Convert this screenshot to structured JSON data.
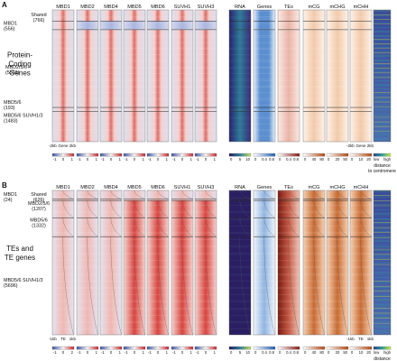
{
  "colors": {
    "enrich_neg": "#3a53a4",
    "enrich_mid": "#f7f4f2",
    "enrich_pos": "#c8242b",
    "rna_low": "#241a5c",
    "rna_mid": "#2f7f9a",
    "rna_high": "#c8e05a",
    "genes_pos": "#1f5fb4",
    "tes_pos": "#8e1b14",
    "meth_pos": "#b34a12",
    "dist_low": "#2c3e8f",
    "dist_high": "#d6e93a"
  },
  "columns": [
    "MBD1",
    "MBD2",
    "MBD4",
    "MBD5",
    "MBD6",
    "SUVH1",
    "SUVH3",
    "RNA",
    "Genes",
    "TEs",
    "mCG",
    "mCHG",
    "mCHH"
  ],
  "panel_a": {
    "letter": "A",
    "title": "Protein-\nCoding\nGenes",
    "title_lines": [
      "Protein-",
      "Coding",
      "Genes"
    ],
    "groups": [
      {
        "name": "Shared",
        "count": "(766)"
      },
      {
        "name": "MBD1",
        "count": "(556)"
      },
      {
        "name": "MBD2/5/6",
        "count": "(5301)"
      },
      {
        "name": "MBD5/6",
        "count": "(193)"
      },
      {
        "name": "MBD5/6 SUVH1/3",
        "count": "(1483)"
      }
    ],
    "group_fractions": [
      0.085,
      0.065,
      0.59,
      0.03,
      0.23
    ],
    "axis_left": [
      "-2kb",
      "Gene",
      "2kb"
    ],
    "axis_right": [
      "-2kb",
      "Gene",
      "2kb"
    ],
    "scales": [
      [
        "-1",
        "0",
        "1"
      ],
      [
        "-1",
        "0",
        "1"
      ],
      [
        "-1",
        "0",
        "1"
      ],
      [
        "-1",
        "0",
        "1"
      ],
      [
        "-1",
        "0",
        "1"
      ],
      [
        "-1",
        "0",
        "1"
      ],
      [
        "-1",
        "0",
        "1"
      ],
      [
        "0",
        "5",
        "10"
      ],
      [
        "0",
        "0.4",
        "0.8"
      ],
      [
        "0",
        "0.4",
        "0.8"
      ],
      [
        "0",
        "40",
        "80"
      ],
      [
        "0",
        "20",
        "50"
      ],
      [
        "0",
        "10",
        "20"
      ]
    ],
    "distance_label": [
      "low",
      "high"
    ],
    "distance_caption": [
      "distance",
      "to centromere"
    ]
  },
  "panel_b": {
    "letter": "B",
    "title_lines": [
      "TEs and",
      "TE genes"
    ],
    "groups": [
      {
        "name": "Shared",
        "count": "(626)"
      },
      {
        "name": "MBD1",
        "count": "(24)"
      },
      {
        "name": "MBD2/5/6",
        "count": "(1207)"
      },
      {
        "name": "MBD5/6",
        "count": "(1332)"
      },
      {
        "name": "MBD5/6 SUVH1/3",
        "count": "(5696)"
      }
    ],
    "group_fractions": [
      0.06,
      0.01,
      0.12,
      0.13,
      0.68
    ],
    "axis_left": [
      "-1kb",
      "TE",
      "1kb"
    ],
    "axis_right": [
      "-1kb",
      "TE",
      "1kb"
    ],
    "scales": [
      [
        "-1",
        "0",
        "2"
      ],
      [
        "-1",
        "0",
        "1"
      ],
      [
        "-1",
        "0",
        "1"
      ],
      [
        "-1",
        "0",
        "1"
      ],
      [
        "-1",
        "0",
        "1"
      ],
      [
        "-1",
        "0",
        "1"
      ],
      [
        "-1",
        "0",
        "1"
      ],
      [
        "0",
        "5",
        "10"
      ],
      [
        "0",
        "0.4",
        "0.8"
      ],
      [
        "0",
        "0.4",
        "0.8"
      ],
      [
        "0",
        "40",
        "80"
      ],
      [
        "0",
        "20",
        "50"
      ],
      [
        "0",
        "10",
        "20"
      ]
    ],
    "distance_label": [
      "low",
      "high"
    ],
    "distance_caption": [
      "distance",
      "to centromere"
    ]
  }
}
